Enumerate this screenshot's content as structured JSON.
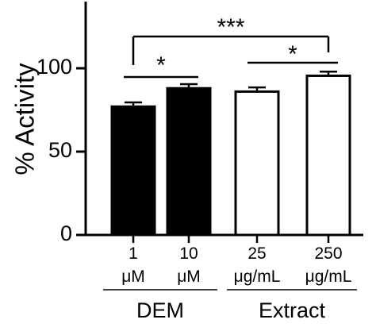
{
  "chart_data": {
    "type": "bar",
    "ylabel": "% Activity",
    "ylim": [
      0,
      135
    ],
    "yticks": [
      0,
      50,
      100
    ],
    "yticks_text": [
      "0",
      "50",
      "100"
    ],
    "categories": [
      {
        "line1": "1",
        "line2": "μM"
      },
      {
        "line1": "10",
        "line2": "μM"
      },
      {
        "line1": "25",
        "line2": "μg/mL"
      },
      {
        "line1": "250",
        "line2": "μg/mL"
      }
    ],
    "values": [
      77,
      88,
      86,
      95.5
    ],
    "errors": [
      2.5,
      2.5,
      2.5,
      2.5
    ],
    "fills": [
      "#000000",
      "#000000",
      "#ffffff",
      "#ffffff"
    ],
    "groups": [
      {
        "label": "DEM",
        "members": [
          0,
          1
        ]
      },
      {
        "label": "Extract",
        "members": [
          2,
          3
        ]
      }
    ],
    "significance": [
      {
        "from": 0,
        "to": 1,
        "label": "*"
      },
      {
        "from": 2,
        "to": 3,
        "label": "*"
      },
      {
        "from": 0,
        "to": 3,
        "label": "***"
      }
    ],
    "grid": false,
    "legend": "none"
  }
}
